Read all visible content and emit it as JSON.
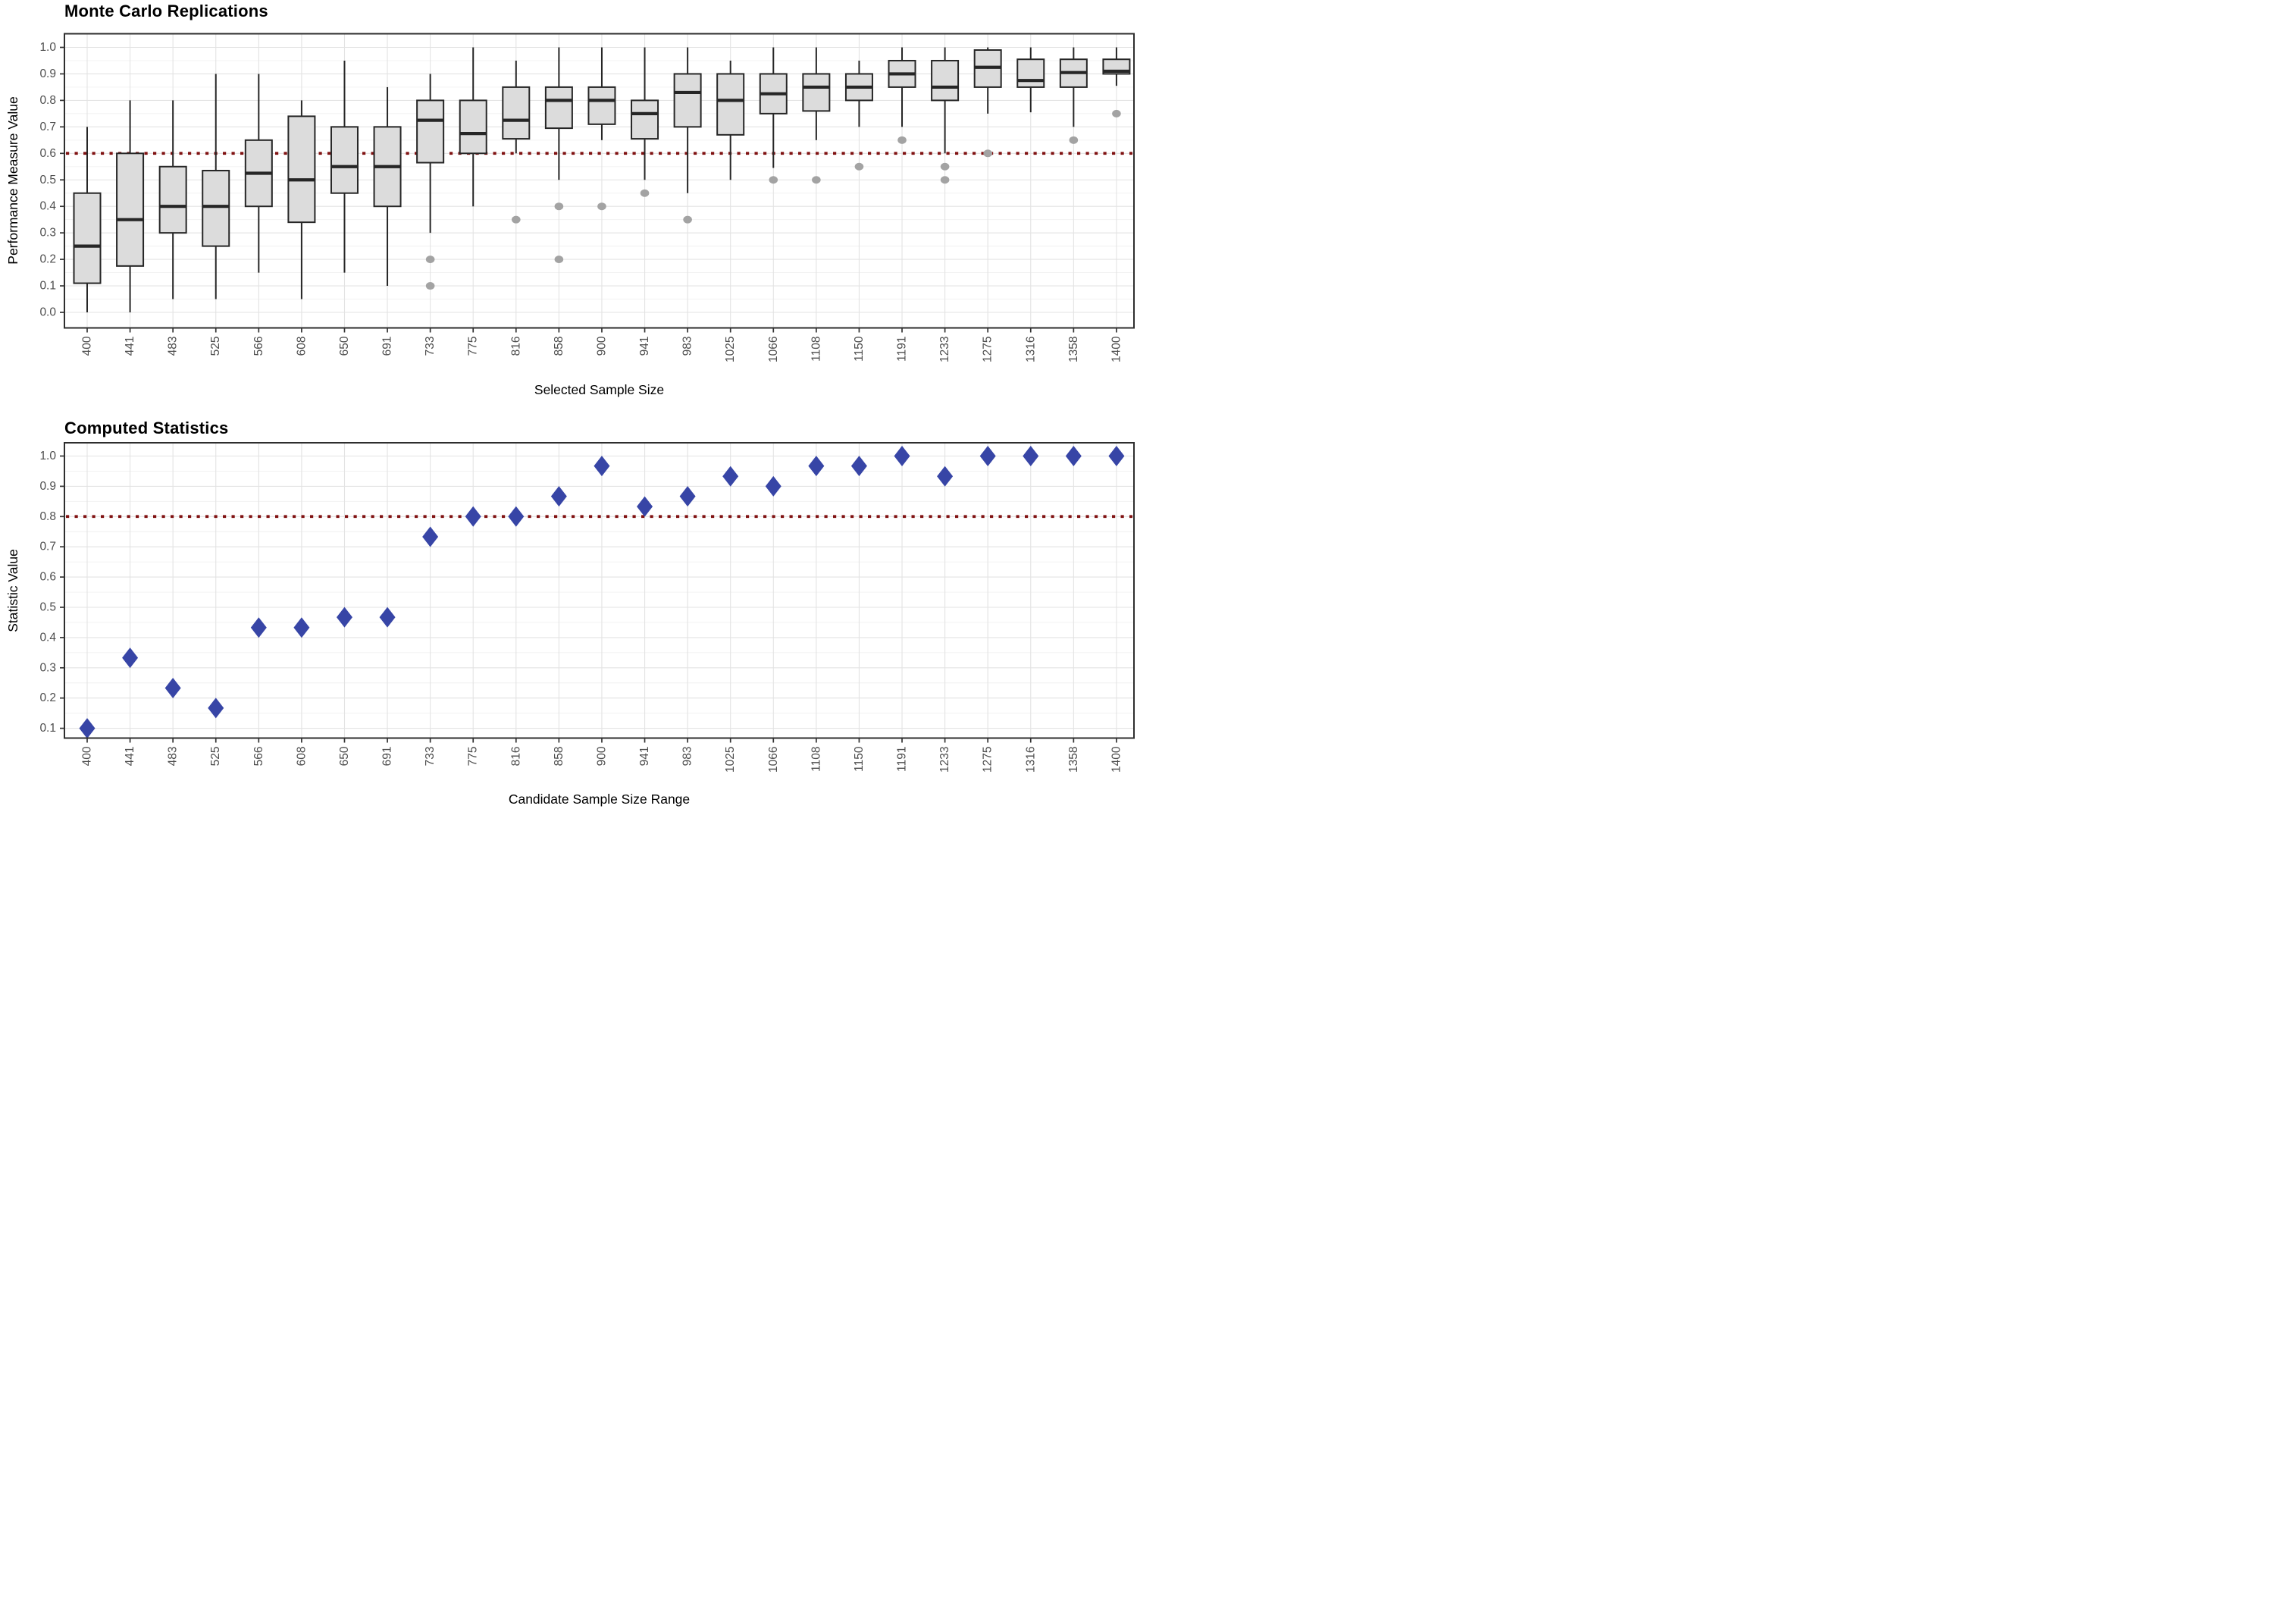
{
  "chart_data": [
    {
      "type": "box",
      "title": "Monte Carlo Replications",
      "xlabel": "Selected Sample Size",
      "ylabel": "Performance Measure Value",
      "categories": [
        "400",
        "441",
        "483",
        "525",
        "566",
        "608",
        "650",
        "691",
        "733",
        "775",
        "816",
        "858",
        "900",
        "941",
        "983",
        "1025",
        "1066",
        "1108",
        "1150",
        "1191",
        "1233",
        "1275",
        "1316",
        "1358",
        "1400"
      ],
      "y_ticks": [
        "0.0",
        "0.1",
        "0.2",
        "0.3",
        "0.4",
        "0.5",
        "0.6",
        "0.7",
        "0.8",
        "0.9",
        "1.0"
      ],
      "ylim": [
        -0.06,
        1.05
      ],
      "grid": "on",
      "reference_line": 0.6,
      "boxes": [
        {
          "category": "400",
          "low": 0.0,
          "q1": 0.11,
          "median": 0.25,
          "q3": 0.45,
          "high": 0.7,
          "outliers": []
        },
        {
          "category": "441",
          "low": 0.0,
          "q1": 0.175,
          "median": 0.35,
          "q3": 0.6,
          "high": 0.8,
          "outliers": []
        },
        {
          "category": "483",
          "low": 0.05,
          "q1": 0.3,
          "median": 0.4,
          "q3": 0.55,
          "high": 0.8,
          "outliers": []
        },
        {
          "category": "525",
          "low": 0.05,
          "q1": 0.25,
          "median": 0.4,
          "q3": 0.535,
          "high": 0.9,
          "outliers": []
        },
        {
          "category": "566",
          "low": 0.15,
          "q1": 0.4,
          "median": 0.525,
          "q3": 0.65,
          "high": 0.9,
          "outliers": []
        },
        {
          "category": "608",
          "low": 0.05,
          "q1": 0.34,
          "median": 0.5,
          "q3": 0.74,
          "high": 0.8,
          "outliers": []
        },
        {
          "category": "650",
          "low": 0.15,
          "q1": 0.45,
          "median": 0.55,
          "q3": 0.7,
          "high": 0.95,
          "outliers": []
        },
        {
          "category": "691",
          "low": 0.1,
          "q1": 0.4,
          "median": 0.55,
          "q3": 0.7,
          "high": 0.85,
          "outliers": []
        },
        {
          "category": "733",
          "low": 0.3,
          "q1": 0.565,
          "median": 0.725,
          "q3": 0.8,
          "high": 0.9,
          "outliers": [
            0.2,
            0.1
          ]
        },
        {
          "category": "775",
          "low": 0.4,
          "q1": 0.6,
          "median": 0.675,
          "q3": 0.8,
          "high": 1.0,
          "outliers": []
        },
        {
          "category": "816",
          "low": 0.6,
          "q1": 0.655,
          "median": 0.725,
          "q3": 0.85,
          "high": 0.95,
          "outliers": [
            0.35
          ]
        },
        {
          "category": "858",
          "low": 0.5,
          "q1": 0.695,
          "median": 0.8,
          "q3": 0.85,
          "high": 1.0,
          "outliers": [
            0.4,
            0.2
          ]
        },
        {
          "category": "900",
          "low": 0.65,
          "q1": 0.71,
          "median": 0.8,
          "q3": 0.85,
          "high": 1.0,
          "outliers": [
            0.4
          ]
        },
        {
          "category": "941",
          "low": 0.5,
          "q1": 0.655,
          "median": 0.75,
          "q3": 0.8,
          "high": 1.0,
          "outliers": [
            0.45
          ]
        },
        {
          "category": "983",
          "low": 0.45,
          "q1": 0.7,
          "median": 0.83,
          "q3": 0.9,
          "high": 1.0,
          "outliers": [
            0.35
          ]
        },
        {
          "category": "1025",
          "low": 0.5,
          "q1": 0.67,
          "median": 0.8,
          "q3": 0.9,
          "high": 0.95,
          "outliers": []
        },
        {
          "category": "1066",
          "low": 0.545,
          "q1": 0.75,
          "median": 0.825,
          "q3": 0.9,
          "high": 1.0,
          "outliers": [
            0.5
          ]
        },
        {
          "category": "1108",
          "low": 0.65,
          "q1": 0.76,
          "median": 0.85,
          "q3": 0.9,
          "high": 1.0,
          "outliers": [
            0.5
          ]
        },
        {
          "category": "1150",
          "low": 0.7,
          "q1": 0.8,
          "median": 0.85,
          "q3": 0.9,
          "high": 0.95,
          "outliers": [
            0.55
          ]
        },
        {
          "category": "1191",
          "low": 0.7,
          "q1": 0.85,
          "median": 0.9,
          "q3": 0.95,
          "high": 1.0,
          "outliers": [
            0.65
          ]
        },
        {
          "category": "1233",
          "low": 0.6,
          "q1": 0.8,
          "median": 0.85,
          "q3": 0.95,
          "high": 1.0,
          "outliers": [
            0.55,
            0.5
          ]
        },
        {
          "category": "1275",
          "low": 0.75,
          "q1": 0.85,
          "median": 0.925,
          "q3": 0.99,
          "high": 1.0,
          "outliers": [
            0.6
          ]
        },
        {
          "category": "1316",
          "low": 0.755,
          "q1": 0.85,
          "median": 0.875,
          "q3": 0.955,
          "high": 1.0,
          "outliers": []
        },
        {
          "category": "1358",
          "low": 0.7,
          "q1": 0.85,
          "median": 0.905,
          "q3": 0.955,
          "high": 1.0,
          "outliers": [
            0.65
          ]
        },
        {
          "category": "1400",
          "low": 0.855,
          "q1": 0.9,
          "median": 0.91,
          "q3": 0.955,
          "high": 1.0,
          "outliers": [
            0.75
          ]
        }
      ]
    },
    {
      "type": "scatter",
      "title": "Computed Statistics",
      "xlabel": "Candidate Sample Size Range",
      "ylabel": "Statistic Value",
      "categories": [
        "400",
        "441",
        "483",
        "525",
        "566",
        "608",
        "650",
        "691",
        "733",
        "775",
        "816",
        "858",
        "900",
        "941",
        "983",
        "1025",
        "1066",
        "1108",
        "1150",
        "1191",
        "1233",
        "1275",
        "1316",
        "1358",
        "1400"
      ],
      "y_ticks": [
        "0.1",
        "0.2",
        "0.3",
        "0.4",
        "0.5",
        "0.6",
        "0.7",
        "0.8",
        "0.9",
        "1.0"
      ],
      "ylim": [
        0.07,
        1.04
      ],
      "grid": "on",
      "reference_line": 0.8,
      "values": [
        0.1,
        0.333,
        0.233,
        0.167,
        0.433,
        0.433,
        0.467,
        0.467,
        0.733,
        0.8,
        0.8,
        0.867,
        0.967,
        0.833,
        0.867,
        0.933,
        0.9,
        0.967,
        0.967,
        1.0,
        0.933,
        1.0,
        1.0,
        1.0,
        1.0
      ]
    }
  ],
  "colors": {
    "background": "#ffffff",
    "box_fill": "#dcdcdc",
    "box_stroke": "#262626",
    "outlier_point": "#a3a3a3",
    "scatter_point": "#3745a6",
    "reference_line": "#801212",
    "grid_major": "#e3e3e3",
    "grid_minor": "#f0f0f0",
    "axis_tick_text": "#4d4d4d",
    "axis_tick_mark": "#333333",
    "panel_border": "#2e2e2e"
  }
}
